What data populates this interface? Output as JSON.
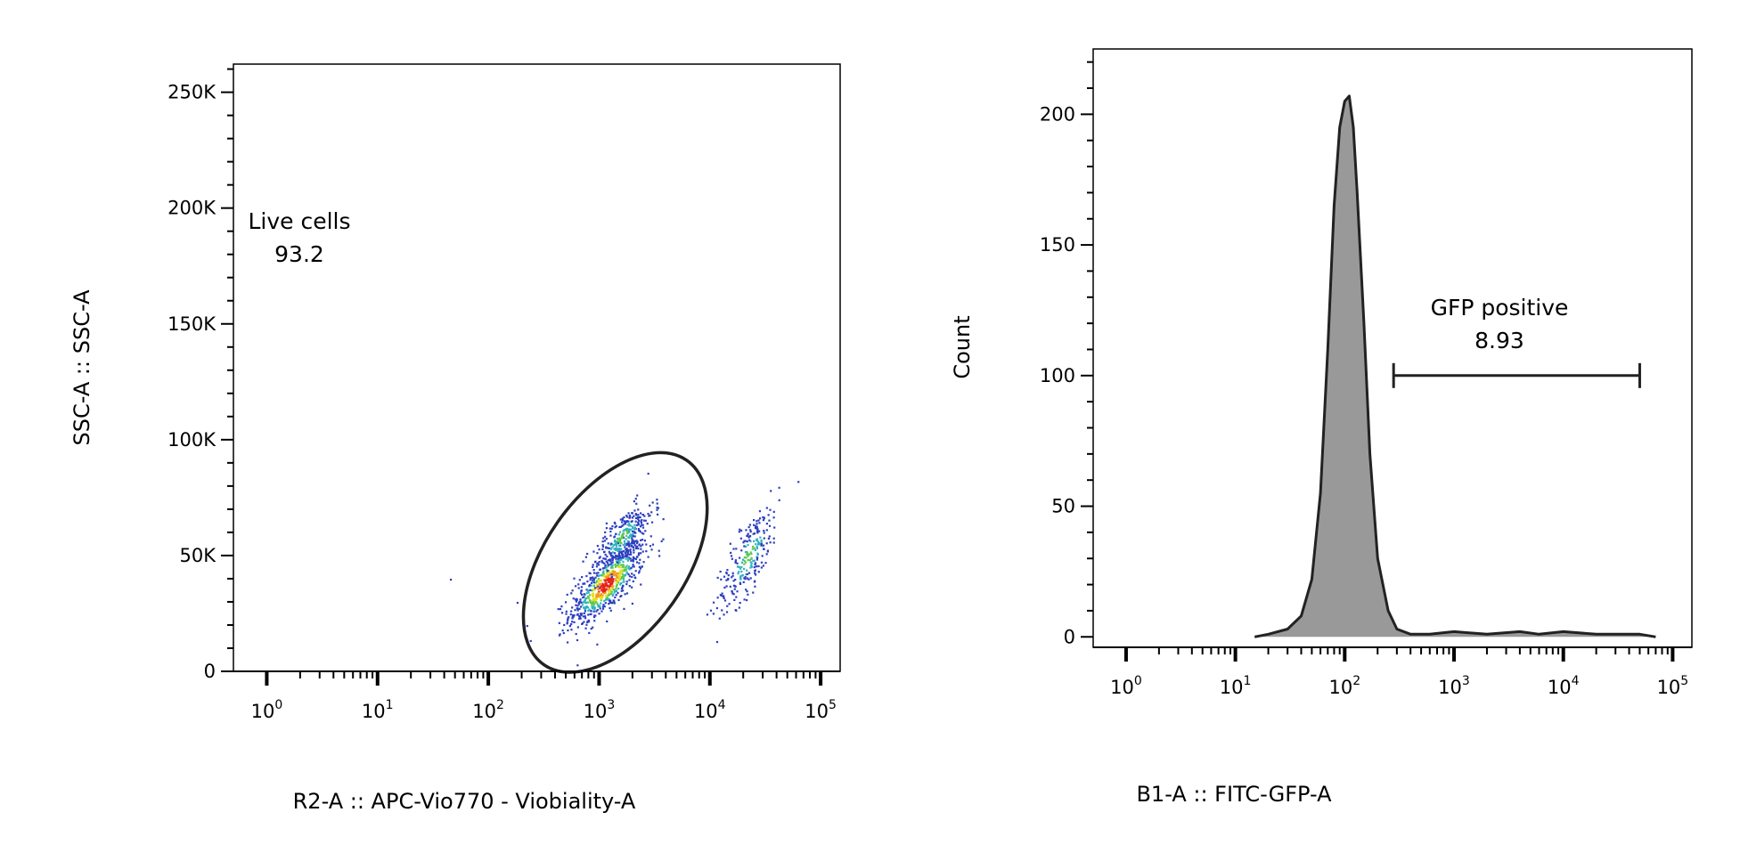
{
  "chart_data": [
    {
      "type": "scatter",
      "subtype": "density-dot-plot",
      "xlabel": "R2-A :: APC-Vio770 - Viobiality-A",
      "ylabel": "SSC-A :: SSC-A",
      "x_scale": "log",
      "xlim": [
        0.5,
        150000
      ],
      "ylim": [
        0,
        262144
      ],
      "x_ticks": [
        {
          "value": 1,
          "base": "10",
          "exp": "0"
        },
        {
          "value": 10,
          "base": "10",
          "exp": "1"
        },
        {
          "value": 100,
          "base": "10",
          "exp": "2"
        },
        {
          "value": 1000,
          "base": "10",
          "exp": "3"
        },
        {
          "value": 10000,
          "base": "10",
          "exp": "4"
        },
        {
          "value": 100000,
          "base": "10",
          "exp": "5"
        }
      ],
      "y_ticks": [
        {
          "value": 0,
          "label": "0"
        },
        {
          "value": 50000,
          "label": "50K"
        },
        {
          "value": 100000,
          "label": "100K"
        },
        {
          "value": 150000,
          "label": "150K"
        },
        {
          "value": 200000,
          "label": "200K"
        },
        {
          "value": 250000,
          "label": "250K"
        }
      ],
      "populations": [
        {
          "center_x": 1150,
          "center_y": 38000,
          "spread_log_x": 0.17,
          "spread_y": 9000,
          "points": 700
        },
        {
          "center_x": 1600,
          "center_y": 58000,
          "spread_log_x": 0.14,
          "spread_y": 8000,
          "points": 300
        },
        {
          "center_x": 22000,
          "center_y": 50000,
          "spread_log_x": 0.14,
          "spread_y": 12000,
          "points": 250
        }
      ],
      "outlier_points": [
        [
          45,
          40000
        ],
        [
          180,
          30000
        ],
        [
          220,
          20000
        ]
      ],
      "gate": {
        "name": "Live cells",
        "value": "93.2",
        "shape": "ellipse",
        "center_x": 1400,
        "center_y": 47000,
        "rotation_deg": 35
      },
      "grid": false,
      "legend": "none"
    },
    {
      "type": "area",
      "subtype": "histogram",
      "xlabel": "B1-A :: FITC-GFP-A",
      "ylabel": "Count",
      "x_scale": "log",
      "xlim": [
        0.5,
        150000
      ],
      "ylim": [
        -4,
        225
      ],
      "x_ticks": [
        {
          "value": 1,
          "base": "10",
          "exp": "0"
        },
        {
          "value": 10,
          "base": "10",
          "exp": "1"
        },
        {
          "value": 100,
          "base": "10",
          "exp": "2"
        },
        {
          "value": 1000,
          "base": "10",
          "exp": "3"
        },
        {
          "value": 10000,
          "base": "10",
          "exp": "4"
        },
        {
          "value": 100000,
          "base": "10",
          "exp": "5"
        }
      ],
      "y_ticks": [
        {
          "value": 0,
          "label": "0"
        },
        {
          "value": 50,
          "label": "50"
        },
        {
          "value": 100,
          "label": "100"
        },
        {
          "value": 150,
          "label": "150"
        },
        {
          "value": 200,
          "label": "200"
        }
      ],
      "x": [
        15,
        20,
        30,
        40,
        50,
        60,
        70,
        80,
        90,
        100,
        110,
        120,
        130,
        150,
        170,
        200,
        250,
        300,
        400,
        600,
        1000,
        2000,
        4000,
        6000,
        10000,
        20000,
        50000,
        70000
      ],
      "y": [
        0,
        1,
        3,
        8,
        22,
        55,
        110,
        165,
        195,
        205,
        207,
        195,
        170,
        120,
        70,
        30,
        10,
        3,
        1,
        1,
        2,
        1,
        2,
        1,
        2,
        1,
        1,
        0
      ],
      "fill_color": "#999999",
      "gate": {
        "name": "GFP positive",
        "value": "8.93",
        "x_start": 280,
        "x_end": 50000,
        "y_level": 100
      },
      "grid": false,
      "legend": "none"
    }
  ]
}
